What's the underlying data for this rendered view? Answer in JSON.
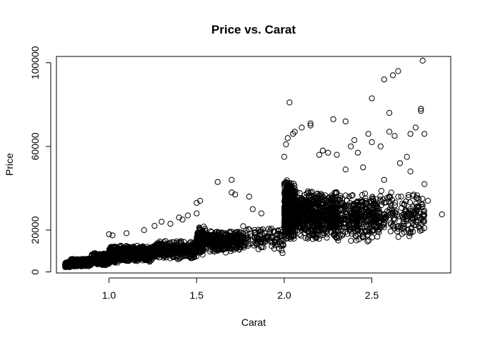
{
  "chart_data": {
    "type": "scatter",
    "title": "Price vs. Carat",
    "xlabel": "Carat",
    "ylabel": "Price",
    "xlim": [
      0.7,
      2.95
    ],
    "ylim": [
      -500,
      103000
    ],
    "xticks": [
      1.0,
      1.5,
      2.0,
      2.5
    ],
    "xtick_labels": [
      "1.0",
      "1.5",
      "2.0",
      "2.5"
    ],
    "yticks": [
      0,
      20000,
      60000,
      100000
    ],
    "ytick_labels": [
      "0",
      "20000",
      "60000",
      "100000"
    ],
    "grid": false,
    "legend": "none",
    "marker": "open-circle",
    "color": "#000000",
    "series": [
      {
        "clusters": [
          {
            "x": [
              0.75,
              0.78
            ],
            "y": [
              2200,
              4800
            ],
            "n": 300
          },
          {
            "x": [
              0.78,
              0.9
            ],
            "y": [
              2500,
              6500
            ],
            "n": 420
          },
          {
            "x": [
              0.9,
              1.0
            ],
            "y": [
              3000,
              9000
            ],
            "n": 360
          },
          {
            "x": [
              1.0,
              1.05
            ],
            "y": [
              4000,
              12500
            ],
            "n": 260
          },
          {
            "x": [
              1.05,
              1.25
            ],
            "y": [
              4500,
              13000
            ],
            "n": 520
          },
          {
            "x": [
              1.25,
              1.5
            ],
            "y": [
              6000,
              15000
            ],
            "n": 340
          },
          {
            "x": [
              1.5,
              1.55
            ],
            "y": [
              8000,
              22000
            ],
            "n": 200
          },
          {
            "x": [
              1.55,
              1.75
            ],
            "y": [
              9000,
              20000
            ],
            "n": 300
          },
          {
            "x": [
              1.75,
              2.0
            ],
            "y": [
              10000,
              22000
            ],
            "n": 130
          },
          {
            "x": [
              2.0,
              2.06
            ],
            "y": [
              14000,
              45000
            ],
            "n": 600
          },
          {
            "x": [
              2.06,
              2.3
            ],
            "y": [
              15000,
              40000
            ],
            "n": 650
          },
          {
            "x": [
              2.3,
              2.55
            ],
            "y": [
              14000,
              38000
            ],
            "n": 360
          },
          {
            "x": [
              2.55,
              2.8
            ],
            "y": [
              16000,
              40000
            ],
            "n": 170
          }
        ],
        "points": [
          [
            0.92,
            9000
          ],
          [
            1.0,
            18000
          ],
          [
            1.02,
            17500
          ],
          [
            1.1,
            18500
          ],
          [
            1.2,
            20000
          ],
          [
            1.26,
            22000
          ],
          [
            1.3,
            24000
          ],
          [
            1.35,
            23000
          ],
          [
            1.4,
            26000
          ],
          [
            1.42,
            25000
          ],
          [
            1.45,
            27000
          ],
          [
            1.5,
            33000
          ],
          [
            1.52,
            34000
          ],
          [
            1.5,
            28000
          ],
          [
            1.62,
            43000
          ],
          [
            1.7,
            44000
          ],
          [
            1.7,
            38000
          ],
          [
            1.72,
            37000
          ],
          [
            1.8,
            36000
          ],
          [
            1.82,
            30000
          ],
          [
            1.87,
            28000
          ],
          [
            1.9,
            17000
          ],
          [
            1.93,
            14000
          ],
          [
            1.99,
            9000
          ],
          [
            2.0,
            55000
          ],
          [
            2.01,
            61000
          ],
          [
            2.02,
            64000
          ],
          [
            2.03,
            81000
          ],
          [
            2.05,
            66000
          ],
          [
            2.06,
            67000
          ],
          [
            2.1,
            69000
          ],
          [
            2.15,
            70000
          ],
          [
            2.15,
            71000
          ],
          [
            2.2,
            56000
          ],
          [
            2.22,
            58000
          ],
          [
            2.25,
            57000
          ],
          [
            2.28,
            73000
          ],
          [
            2.3,
            56000
          ],
          [
            2.35,
            72000
          ],
          [
            2.38,
            60000
          ],
          [
            2.4,
            63000
          ],
          [
            2.42,
            57000
          ],
          [
            2.48,
            66000
          ],
          [
            2.5,
            83000
          ],
          [
            2.5,
            62000
          ],
          [
            2.55,
            60000
          ],
          [
            2.57,
            92000
          ],
          [
            2.6,
            76000
          ],
          [
            2.6,
            67000
          ],
          [
            2.62,
            94000
          ],
          [
            2.63,
            65000
          ],
          [
            2.65,
            96000
          ],
          [
            2.7,
            55000
          ],
          [
            2.72,
            66000
          ],
          [
            2.75,
            69000
          ],
          [
            2.78,
            78000
          ],
          [
            2.78,
            77000
          ],
          [
            2.79,
            101000
          ],
          [
            2.8,
            66000
          ],
          [
            2.8,
            42000
          ],
          [
            2.82,
            34000
          ],
          [
            2.62,
            28000
          ],
          [
            2.68,
            24000
          ],
          [
            2.9,
            27500
          ],
          [
            2.57,
            44000
          ],
          [
            2.66,
            52000
          ],
          [
            2.72,
            48000
          ],
          [
            2.45,
            50000
          ],
          [
            2.35,
            49000
          ]
        ]
      }
    ]
  }
}
